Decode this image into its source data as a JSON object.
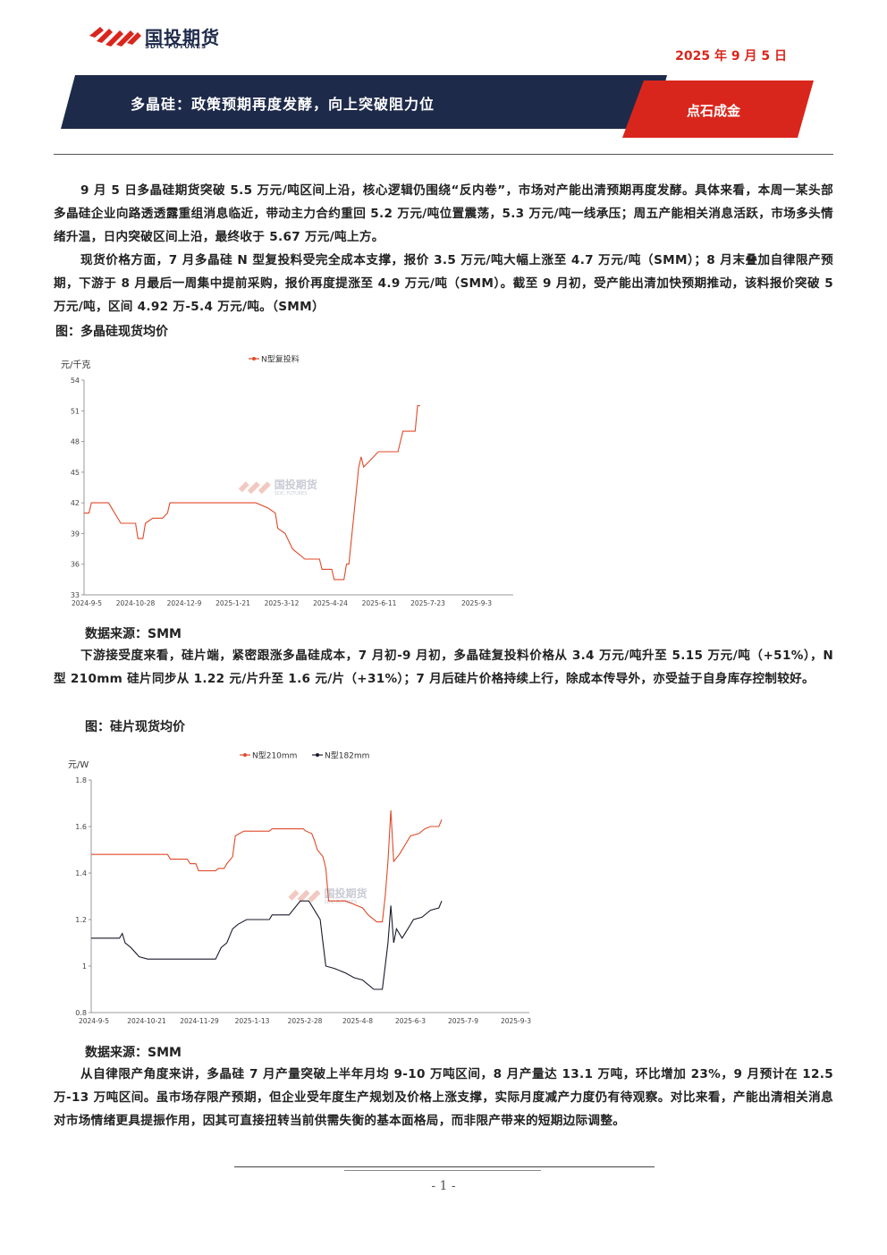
{
  "header": {
    "logo_cn": "国投期货",
    "logo_en": "SDIC FUTURES",
    "date": "2025 年 9 月 5 日",
    "title": "多晶硅：政策预期再度发酵，向上突破阻力位",
    "tag": "点石成金"
  },
  "paragraphs": [
    "9 月 5 日多晶硅期货突破 5.5 万元/吨区间上沿，核心逻辑仍围绕“反内卷”，市场对产能出清预期再度发酵。具体来看，本周一某头部多晶硅企业向路透透露重组消息临近，带动主力合约重回 5.2 万元/吨位置震荡，5.3 万元/吨一线承压；周五产能相关消息活跃，市场多头情绪升温，日内突破区间上沿，最终收于 5.67 万元/吨上方。",
    "现货价格方面，7 月多晶硅 N 型复投料受完全成本支撑，报价 3.5 万元/吨大幅上涨至 4.7 万元/吨（SMM）；8 月末叠加自律限产预期，下游于 8 月最后一周集中提前采购，报价再度提涨至 4.9 万元/吨（SMM）。截至 9 月初，受产能出清加快预期推动，该料报价突破 5 万元/吨，区间 4.92 万-5.4 万元/吨。（SMM）",
    "下游接受度来看，硅片端，紧密跟涨多晶硅成本，7 月初-9 月初，多晶硅复投料价格从 3.4 万元/吨升至 5.15 万元/吨（+51%），N 型 210mm 硅片同步从 1.22 元/片升至 1.6 元/片（+31%）；7 月后硅片价格持续上行，除成本传导外，亦受益于自身库存控制较好。",
    "从自律限产角度来讲，多晶硅 7 月产量突破上半年月均 9-10 万吨区间，8 月产量达 13.1 万吨，环比增加 23%，9 月预计在 12.5 万-13 万吨区间。虽市场存限产预期，但企业受年度生产规划及价格上涨支撑，实际月度减产力度仍有待观察。对比来看，产能出清相关消息对市场情绪更具提振作用，因其可直接扭转当前供需失衡的基本面格局，而非限产带来的短期边际调整。"
  ],
  "captions": {
    "fig1": "图：多晶硅现货均价",
    "fig2": "图：硅片现货均价",
    "source1": "数据来源：SMM",
    "source2": "数据来源：SMM"
  },
  "watermark": {
    "cn": "国投期货",
    "en": "SDIC FUTURES"
  },
  "colors": {
    "red": "#d9261c",
    "navy": "#1e2a4a",
    "line_red": "#e04a2a",
    "line_black": "#1a1a2e"
  },
  "chart_data": [
    {
      "type": "line",
      "title": "",
      "ylabel": "元/千克",
      "ylim": [
        33,
        54
      ],
      "yticks": [
        "33",
        "36",
        "39",
        "42",
        "45",
        "48",
        "51",
        "54"
      ],
      "xticks": [
        "2024-9-5",
        "2024-10-28",
        "2024-12-9",
        "2025-1-21",
        "2025-3-12",
        "2025-4-24",
        "2025-6-11",
        "2025-7-23",
        "2025-9-3"
      ],
      "series": [
        {
          "name": "N型复投料",
          "points": [
            [
              0,
              41
            ],
            [
              2,
              41
            ],
            [
              3,
              42
            ],
            [
              10,
              42
            ],
            [
              10,
              42
            ],
            [
              15,
              40
            ],
            [
              21,
              40
            ],
            [
              22,
              38.5
            ],
            [
              24,
              38.5
            ],
            [
              25,
              40
            ],
            [
              28,
              40.5
            ],
            [
              32,
              40.5
            ],
            [
              34,
              41
            ],
            [
              35,
              42
            ],
            [
              62,
              42
            ],
            [
              70,
              42
            ],
            [
              75,
              41.5
            ],
            [
              78,
              41
            ],
            [
              79,
              39.5
            ],
            [
              82,
              39
            ],
            [
              85,
              37.5
            ],
            [
              90,
              36.5
            ],
            [
              96,
              36.5
            ],
            [
              97,
              35.5
            ],
            [
              101,
              35.5
            ],
            [
              102,
              34.5
            ],
            [
              106,
              34.5
            ],
            [
              107,
              36
            ],
            [
              108,
              36
            ],
            [
              112,
              45.5
            ],
            [
              113,
              46.5
            ],
            [
              114,
              45.5
            ],
            [
              116,
              46
            ],
            [
              118,
              46.5
            ],
            [
              120,
              47
            ],
            [
              126,
              47
            ],
            [
              128,
              47
            ],
            [
              130,
              49
            ],
            [
              135,
              49
            ],
            [
              136,
              51.5
            ],
            [
              137,
              51.5
            ]
          ]
        }
      ]
    },
    {
      "type": "line",
      "title": "",
      "ylabel": "元/W",
      "ylim": [
        0.8,
        1.8
      ],
      "yticks": [
        "0.8",
        "1",
        "1.2",
        "1.4",
        "1.6",
        "1.8"
      ],
      "xticks": [
        "2024-9-5",
        "2024-10-21",
        "2024-11-29",
        "2025-1-13",
        "2025-2-28",
        "2025-4-8",
        "2025-6-3",
        "2025-7-9",
        "2025-9-3"
      ],
      "series": [
        {
          "name": "N型210mm",
          "points": [
            [
              0,
              1.48
            ],
            [
              27,
              1.48
            ],
            [
              28,
              1.46
            ],
            [
              34,
              1.46
            ],
            [
              35,
              1.44
            ],
            [
              37,
              1.44
            ],
            [
              38,
              1.41
            ],
            [
              44,
              1.41
            ],
            [
              45,
              1.42
            ],
            [
              47,
              1.42
            ],
            [
              48,
              1.44
            ],
            [
              50,
              1.47
            ],
            [
              51,
              1.56
            ],
            [
              54,
              1.58
            ],
            [
              63,
              1.58
            ],
            [
              64,
              1.59
            ],
            [
              75,
              1.59
            ],
            [
              76,
              1.58
            ],
            [
              78,
              1.57
            ],
            [
              79,
              1.54
            ],
            [
              80,
              1.5
            ],
            [
              82,
              1.47
            ],
            [
              83,
              1.42
            ],
            [
              84,
              1.28
            ],
            [
              90,
              1.28
            ],
            [
              92,
              1.27
            ],
            [
              96,
              1.25
            ],
            [
              98,
              1.22
            ],
            [
              101,
              1.19
            ],
            [
              103,
              1.19
            ],
            [
              104,
              1.3
            ],
            [
              105,
              1.45
            ],
            [
              106,
              1.67
            ],
            [
              107,
              1.45
            ],
            [
              109,
              1.48
            ],
            [
              111,
              1.52
            ],
            [
              113,
              1.56
            ],
            [
              116,
              1.57
            ],
            [
              118,
              1.59
            ],
            [
              120,
              1.6
            ],
            [
              123,
              1.6
            ],
            [
              124,
              1.63
            ]
          ]
        },
        {
          "name": "N型182mm",
          "points": [
            [
              0,
              1.12
            ],
            [
              10,
              1.12
            ],
            [
              11,
              1.14
            ],
            [
              12,
              1.1
            ],
            [
              14,
              1.08
            ],
            [
              17,
              1.04
            ],
            [
              20,
              1.03
            ],
            [
              30,
              1.03
            ],
            [
              40,
              1.03
            ],
            [
              44,
              1.03
            ],
            [
              46,
              1.08
            ],
            [
              48,
              1.1
            ],
            [
              50,
              1.16
            ],
            [
              52,
              1.18
            ],
            [
              55,
              1.2
            ],
            [
              63,
              1.2
            ],
            [
              64,
              1.22
            ],
            [
              70,
              1.22
            ],
            [
              72,
              1.25
            ],
            [
              74,
              1.28
            ],
            [
              77,
              1.28
            ],
            [
              78,
              1.26
            ],
            [
              80,
              1.22
            ],
            [
              81,
              1.2
            ],
            [
              82,
              1.1
            ],
            [
              83,
              1.0
            ],
            [
              86,
              0.99
            ],
            [
              90,
              0.97
            ],
            [
              93,
              0.95
            ],
            [
              96,
              0.94
            ],
            [
              98,
              0.92
            ],
            [
              100,
              0.9
            ],
            [
              103,
              0.9
            ],
            [
              104,
              1.0
            ],
            [
              105,
              1.1
            ],
            [
              106,
              1.26
            ],
            [
              107,
              1.1
            ],
            [
              108,
              1.16
            ],
            [
              110,
              1.12
            ],
            [
              112,
              1.16
            ],
            [
              114,
              1.2
            ],
            [
              117,
              1.21
            ],
            [
              120,
              1.24
            ],
            [
              123,
              1.25
            ],
            [
              124,
              1.28
            ]
          ]
        }
      ]
    }
  ],
  "footer": {
    "page": "- 1 -"
  }
}
